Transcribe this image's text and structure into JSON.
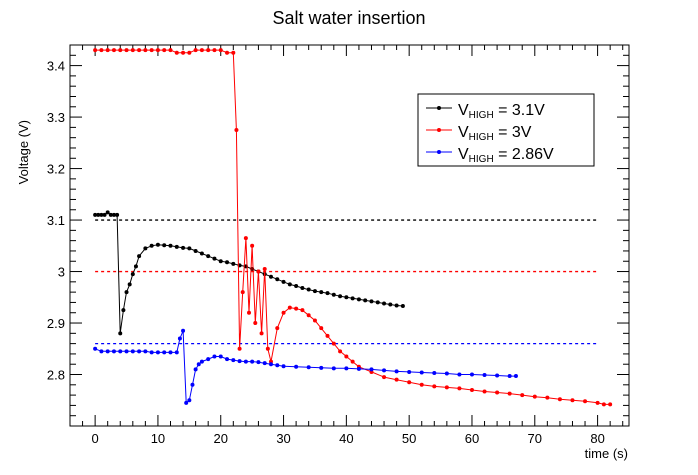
{
  "chart_data": {
    "type": "line",
    "title": "Salt water insertion",
    "xlabel": "time (s)",
    "ylabel": "Voltage (V)",
    "xlim": [
      -4,
      85
    ],
    "ylim": [
      2.7,
      3.44
    ],
    "x_ticks": [
      0,
      10,
      20,
      30,
      40,
      50,
      60,
      70,
      80
    ],
    "y_ticks": [
      2.8,
      2.9,
      3.0,
      3.1,
      3.2,
      3.3,
      3.4
    ],
    "y_tick_labels": [
      "2.8",
      "2.9",
      "3",
      "3.1",
      "3.2",
      "3.3",
      "3.4"
    ],
    "grid": false,
    "legend_position": "top-right",
    "reference_lines": [
      {
        "y": 3.1,
        "color": "#000000",
        "x_range": [
          0,
          80
        ]
      },
      {
        "y": 3.0,
        "color": "#ff0000",
        "x_range": [
          0,
          80
        ]
      },
      {
        "y": 2.86,
        "color": "#0000ff",
        "x_range": [
          0,
          80
        ]
      }
    ],
    "series": [
      {
        "legend_main": "V",
        "legend_sub": "HIGH",
        "legend_value": " = 3.1V",
        "color": "#000000",
        "x": [
          0,
          0.5,
          1,
          1.5,
          2,
          2.5,
          3,
          3.5,
          4,
          4.5,
          5,
          5.5,
          6,
          6.5,
          7,
          8,
          9,
          10,
          11,
          12,
          13,
          14,
          15,
          16,
          17,
          18,
          19,
          20,
          21,
          22,
          23,
          24,
          25,
          26,
          27,
          28,
          29,
          30,
          31,
          32,
          33,
          34,
          35,
          36,
          37,
          38,
          39,
          40,
          41,
          42,
          43,
          44,
          45,
          46,
          47,
          48,
          49
        ],
        "y": [
          3.11,
          3.11,
          3.11,
          3.11,
          3.115,
          3.11,
          3.11,
          3.11,
          2.88,
          2.925,
          2.96,
          2.975,
          2.995,
          3.01,
          3.03,
          3.045,
          3.05,
          3.052,
          3.051,
          3.05,
          3.048,
          3.046,
          3.045,
          3.04,
          3.035,
          3.03,
          3.025,
          3.02,
          3.018,
          3.015,
          3.012,
          3.01,
          3.005,
          3.0,
          2.995,
          2.99,
          2.985,
          2.98,
          2.975,
          2.972,
          2.968,
          2.965,
          2.962,
          2.96,
          2.958,
          2.955,
          2.952,
          2.95,
          2.948,
          2.946,
          2.944,
          2.942,
          2.94,
          2.938,
          2.936,
          2.934,
          2.933
        ]
      },
      {
        "legend_main": "V",
        "legend_sub": "HIGH",
        "legend_value": " = 3V",
        "color": "#ff0000",
        "x": [
          0,
          1,
          2,
          3,
          4,
          5,
          6,
          7,
          8,
          9,
          10,
          11,
          12,
          13,
          14,
          15,
          16,
          17,
          18,
          19,
          20,
          21,
          22,
          22.5,
          23,
          23.5,
          24,
          24.5,
          25,
          25.5,
          26,
          26.5,
          27,
          27.5,
          28,
          29,
          30,
          31,
          32,
          33,
          34,
          35,
          36,
          37,
          38,
          39,
          40,
          41,
          42,
          44,
          46,
          48,
          50,
          52,
          54,
          56,
          58,
          60,
          62,
          64,
          66,
          68,
          70,
          72,
          74,
          76,
          78,
          80,
          81,
          82
        ],
        "y": [
          3.43,
          3.43,
          3.43,
          3.43,
          3.43,
          3.43,
          3.43,
          3.43,
          3.43,
          3.43,
          3.43,
          3.43,
          3.43,
          3.425,
          3.425,
          3.425,
          3.43,
          3.43,
          3.43,
          3.43,
          3.43,
          3.425,
          3.425,
          3.275,
          2.85,
          2.96,
          3.065,
          2.92,
          3.05,
          2.9,
          3.0,
          2.88,
          3.005,
          2.85,
          2.825,
          2.89,
          2.92,
          2.93,
          2.928,
          2.925,
          2.915,
          2.905,
          2.89,
          2.875,
          2.86,
          2.845,
          2.835,
          2.825,
          2.815,
          2.805,
          2.795,
          2.79,
          2.785,
          2.78,
          2.777,
          2.775,
          2.773,
          2.77,
          2.767,
          2.765,
          2.763,
          2.76,
          2.757,
          2.755,
          2.752,
          2.75,
          2.748,
          2.745,
          2.742,
          2.742
        ]
      },
      {
        "legend_main": "V",
        "legend_sub": "HIGH",
        "legend_value": " = 2.86V",
        "color": "#0000ff",
        "x": [
          0,
          1,
          2,
          3,
          4,
          5,
          6,
          7,
          8,
          9,
          10,
          11,
          12,
          13,
          13.5,
          14,
          14.5,
          15,
          15.5,
          16,
          16.5,
          17,
          18,
          19,
          20,
          21,
          22,
          23,
          24,
          25,
          26,
          27,
          28,
          29,
          30,
          32,
          34,
          36,
          38,
          40,
          42,
          44,
          46,
          48,
          50,
          52,
          54,
          56,
          58,
          60,
          62,
          64,
          66,
          67
        ],
        "y": [
          2.85,
          2.845,
          2.845,
          2.845,
          2.845,
          2.845,
          2.845,
          2.845,
          2.845,
          2.843,
          2.843,
          2.843,
          2.843,
          2.843,
          2.87,
          2.885,
          2.745,
          2.75,
          2.78,
          2.81,
          2.82,
          2.825,
          2.83,
          2.835,
          2.835,
          2.83,
          2.828,
          2.826,
          2.825,
          2.825,
          2.824,
          2.822,
          2.82,
          2.818,
          2.816,
          2.815,
          2.814,
          2.813,
          2.812,
          2.812,
          2.811,
          2.81,
          2.808,
          2.806,
          2.805,
          2.804,
          2.803,
          2.802,
          2.8,
          2.8,
          2.799,
          2.798,
          2.797,
          2.797
        ]
      }
    ]
  }
}
